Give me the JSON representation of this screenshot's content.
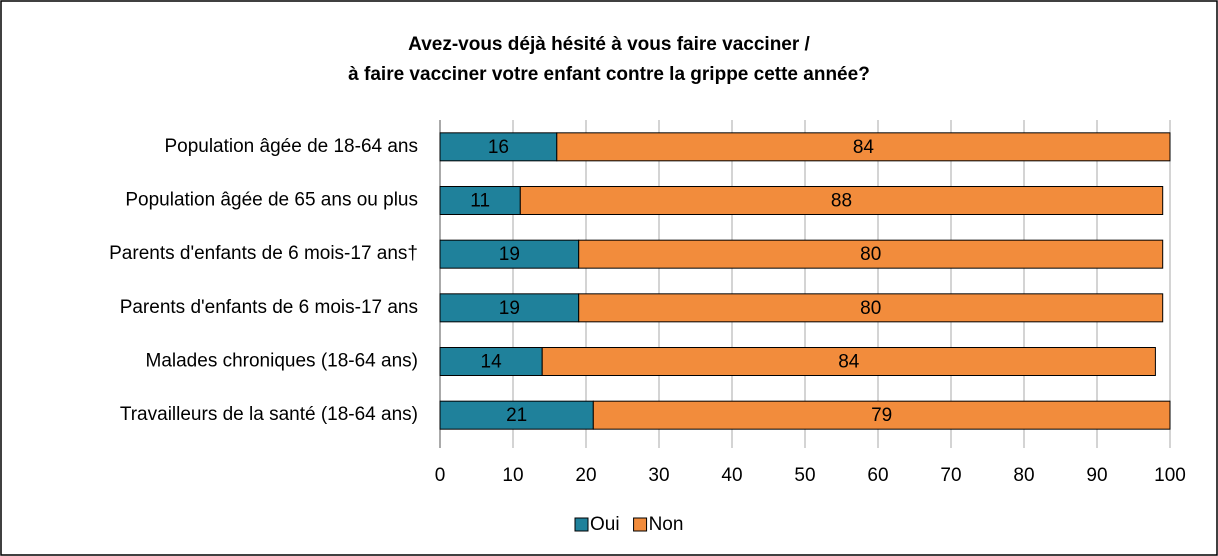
{
  "chart_data": {
    "type": "stacked-bar-horizontal",
    "title": [
      "Avez-vous déjà hésité à vous faire vacciner /",
      "à faire vacciner votre enfant contre la grippe cette année?"
    ],
    "categories": [
      "Population âgée de 18-64 ans",
      "Population âgée de 65 ans ou plus",
      "Parents d'enfants de 6 mois-17 ans†",
      "Parents d'enfants de 6 mois-17 ans",
      "Malades chroniques (18-64 ans)",
      "Travailleurs de la santé (18-64 ans)"
    ],
    "series": [
      {
        "name": "Oui",
        "color": "#1f819b",
        "label_color": "#ffffff",
        "values": [
          16,
          11,
          19,
          19,
          14,
          21
        ]
      },
      {
        "name": "Non",
        "color": "#f28c3c",
        "label_color": "#000000",
        "values": [
          84,
          88,
          80,
          80,
          84,
          79
        ]
      }
    ],
    "xlim": [
      0,
      100
    ],
    "xticks": [
      0,
      10,
      20,
      30,
      40,
      50,
      60,
      70,
      80,
      90,
      100
    ],
    "grid": true,
    "legend": "bottom"
  }
}
